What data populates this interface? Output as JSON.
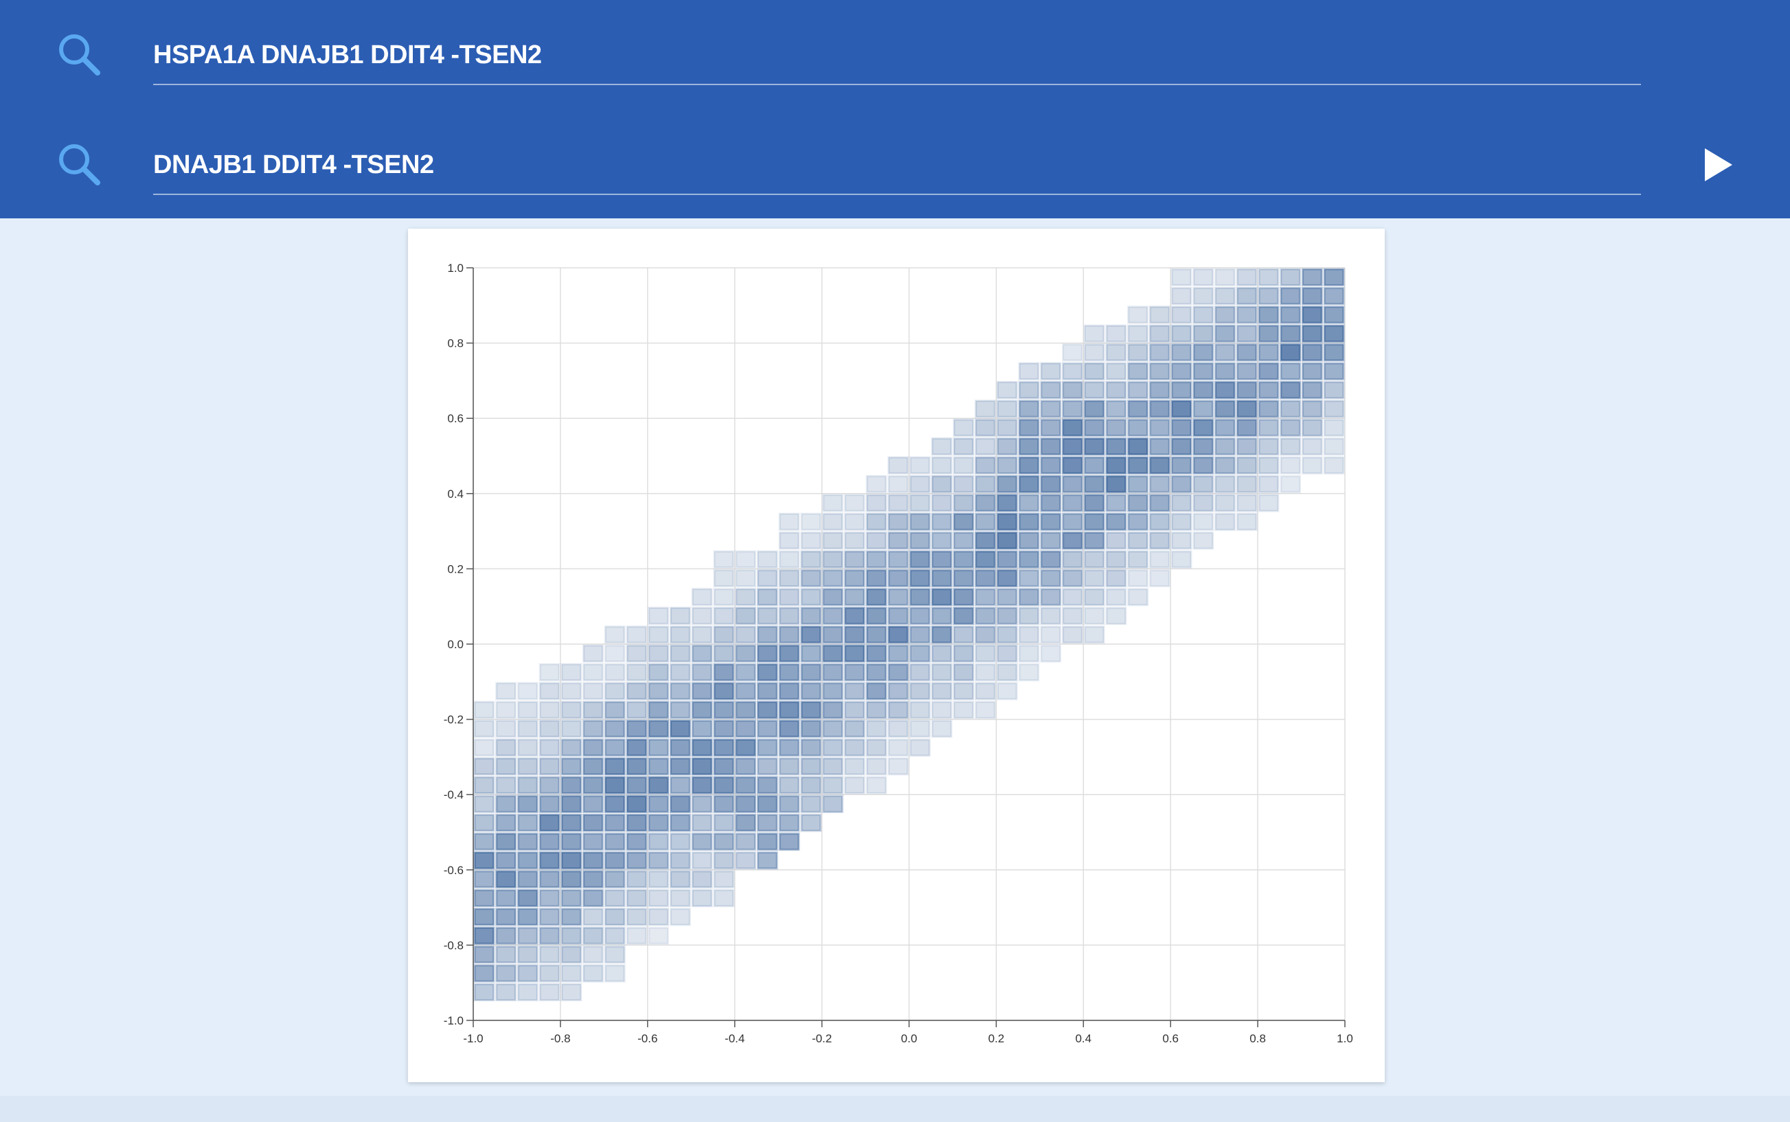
{
  "search": {
    "query_1": "HSPA1A DNAJB1 DDIT4 -TSEN2",
    "query_2": "DNAJB1 DDIT4 -TSEN2",
    "icon": "search-icon",
    "run_icon": "play-icon"
  },
  "colors": {
    "header": "#2b5db3",
    "background": "#e3eefa",
    "icon": "#5aa8f0",
    "bin_base": "#1f4e8c"
  },
  "chart_data": {
    "type": "heatmap",
    "title": "",
    "xlabel": "",
    "ylabel": "",
    "xlim": [
      -1.0,
      1.0
    ],
    "ylim": [
      -1.0,
      1.0
    ],
    "bin_size": 0.05,
    "grid": true,
    "x_ticks": [
      "-1.0",
      "-0.8",
      "-0.6",
      "-0.4",
      "-0.2",
      "0.0",
      "0.2",
      "0.4",
      "0.6",
      "0.8",
      "1.0"
    ],
    "y_ticks": [
      "1.0",
      "0.8",
      "0.6",
      "0.4",
      "0.2",
      "0.0",
      "-0.2",
      "-0.4",
      "-0.6",
      "-0.8",
      "-1.0"
    ],
    "distribution": {
      "relationship": "positive diagonal band",
      "center_line": {
        "slope": 0.78,
        "intercept": 0.1
      },
      "band_half_width_lower_x": 0.45,
      "band_half_width_upper_x": 0.35,
      "max_density_at": [
        -0.28,
        -0.52
      ],
      "secondary_density_at": [
        0.33,
        0.58
      ]
    }
  }
}
